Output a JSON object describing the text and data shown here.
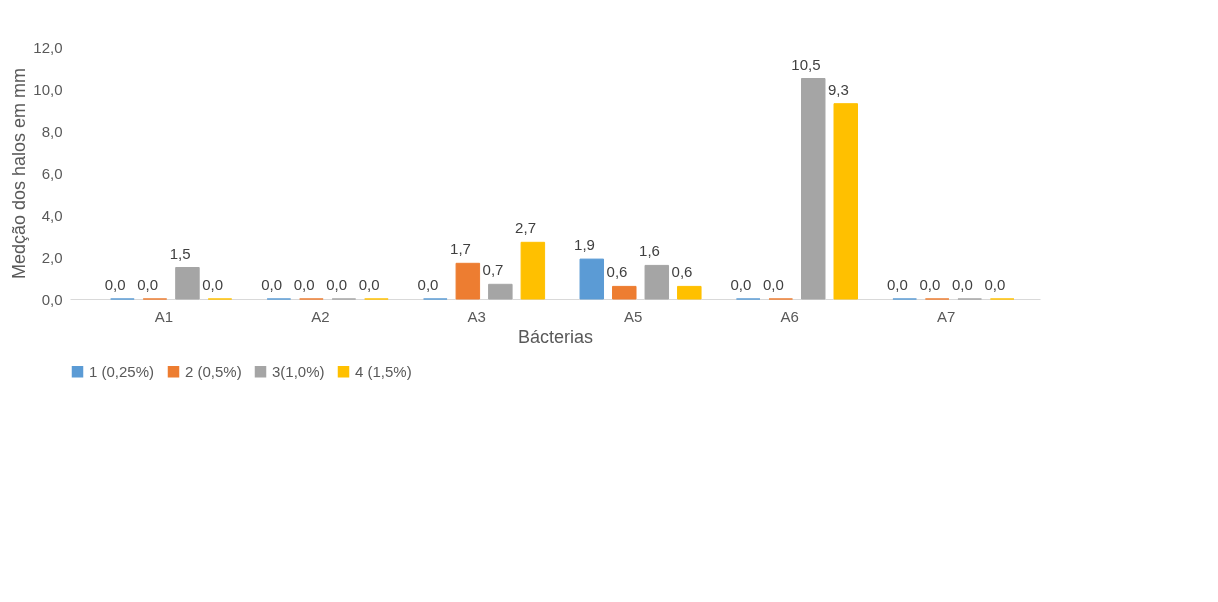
{
  "chart_data": {
    "type": "bar",
    "xlabel": "Bácterias",
    "ylabel": "Medção dos halos em mm",
    "categories": [
      "A1",
      "A2",
      "A3",
      "A5",
      "A6",
      "A7"
    ],
    "series": [
      {
        "name": "1 (0,25%)",
        "color": "#5b9bd5",
        "values": [
          0,
          0,
          0,
          1.9,
          0,
          0
        ],
        "value_labels": [
          "0,0",
          "0,0",
          "0,0",
          "1,9",
          "0,0",
          "0,0"
        ]
      },
      {
        "name": "2 (0,5%)",
        "color": "#ed7d31",
        "values": [
          0,
          0,
          1.7,
          0.6,
          0,
          0
        ],
        "value_labels": [
          "0,0",
          "0,0",
          "1,7",
          "0,6",
          "0,0",
          "0,0"
        ]
      },
      {
        "name": "3(1,0%)",
        "color": "#a5a5a5",
        "values": [
          1.5,
          0,
          0.7,
          1.6,
          10.5,
          0
        ],
        "value_labels": [
          "1,5",
          "0,0",
          "0,7",
          "1,6",
          "10,5",
          "0,0"
        ]
      },
      {
        "name": "4 (1,5%)",
        "color": "#ffc000",
        "values": [
          0,
          0,
          2.7,
          0.6,
          9.3,
          0
        ],
        "value_labels": [
          "0,0",
          "0,0",
          "2,7",
          "0,6",
          "9,3",
          "0,0"
        ]
      }
    ],
    "ylim": [
      0,
      12
    ],
    "yticks": [
      {
        "value": 0,
        "label": "0,0"
      },
      {
        "value": 2,
        "label": "2,0"
      },
      {
        "value": 4,
        "label": "4,0"
      },
      {
        "value": 6,
        "label": "6,0"
      },
      {
        "value": 8,
        "label": "8,0"
      },
      {
        "value": 10,
        "label": "10,0"
      },
      {
        "value": 12,
        "label": "12,0"
      }
    ],
    "grid": false,
    "legend": "bottom"
  }
}
